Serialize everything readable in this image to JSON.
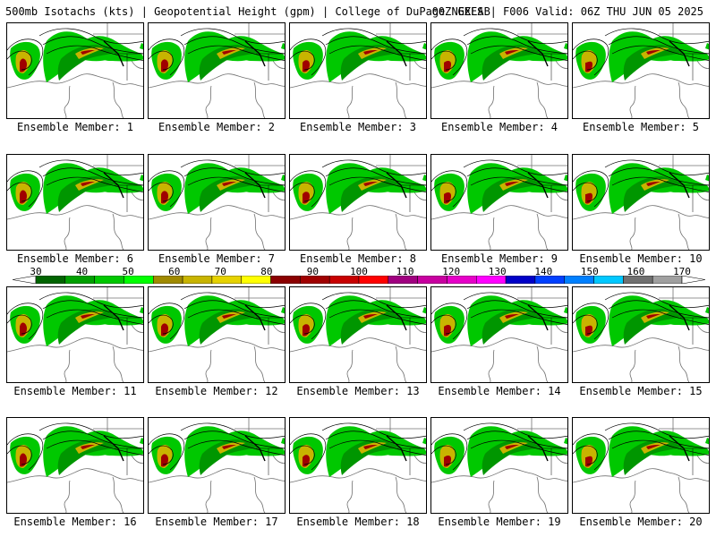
{
  "header": {
    "title_left": "500mb Isotachs (kts) | Geopotential Height (gpm) | College of DuPage NEXLAB",
    "title_right": "00Z GEFS | F006 Valid: 06Z THU JUN 05 2025"
  },
  "panel_prefix": "Ensemble Member: ",
  "members": [
    "Ensemble Member: 1",
    "Ensemble Member: 2",
    "Ensemble Member: 3",
    "Ensemble Member: 4",
    "Ensemble Member: 5",
    "Ensemble Member: 6",
    "Ensemble Member: 7",
    "Ensemble Member: 8",
    "Ensemble Member: 9",
    "Ensemble Member: 10",
    "Ensemble Member: 11",
    "Ensemble Member: 12",
    "Ensemble Member: 13",
    "Ensemble Member: 14",
    "Ensemble Member: 15",
    "Ensemble Member: 16",
    "Ensemble Member: 17",
    "Ensemble Member: 18",
    "Ensemble Member: 19",
    "Ensemble Member: 20"
  ],
  "colorbar": {
    "ticks": [
      "30",
      "40",
      "50",
      "60",
      "70",
      "80",
      "90",
      "100",
      "110",
      "120",
      "130",
      "140",
      "150",
      "160",
      "170"
    ],
    "colors": [
      "#006400",
      "#00a000",
      "#00c800",
      "#00ff00",
      "#a08a00",
      "#c8b400",
      "#e6d200",
      "#ffff00",
      "#8b0000",
      "#a00000",
      "#c80000",
      "#ff0000",
      "#a00080",
      "#c800a0",
      "#e600c8",
      "#ff00ff",
      "#0000c8",
      "#0040ff",
      "#0080ff",
      "#00c8ff",
      "#707070",
      "#a0a0a0"
    ]
  },
  "map_colors": {
    "jet_light": "#00c800",
    "jet_mid": "#009600",
    "jet_core": "#c8b400",
    "jet_max": "#a00000",
    "height": "#000000",
    "coast": "#707070"
  }
}
